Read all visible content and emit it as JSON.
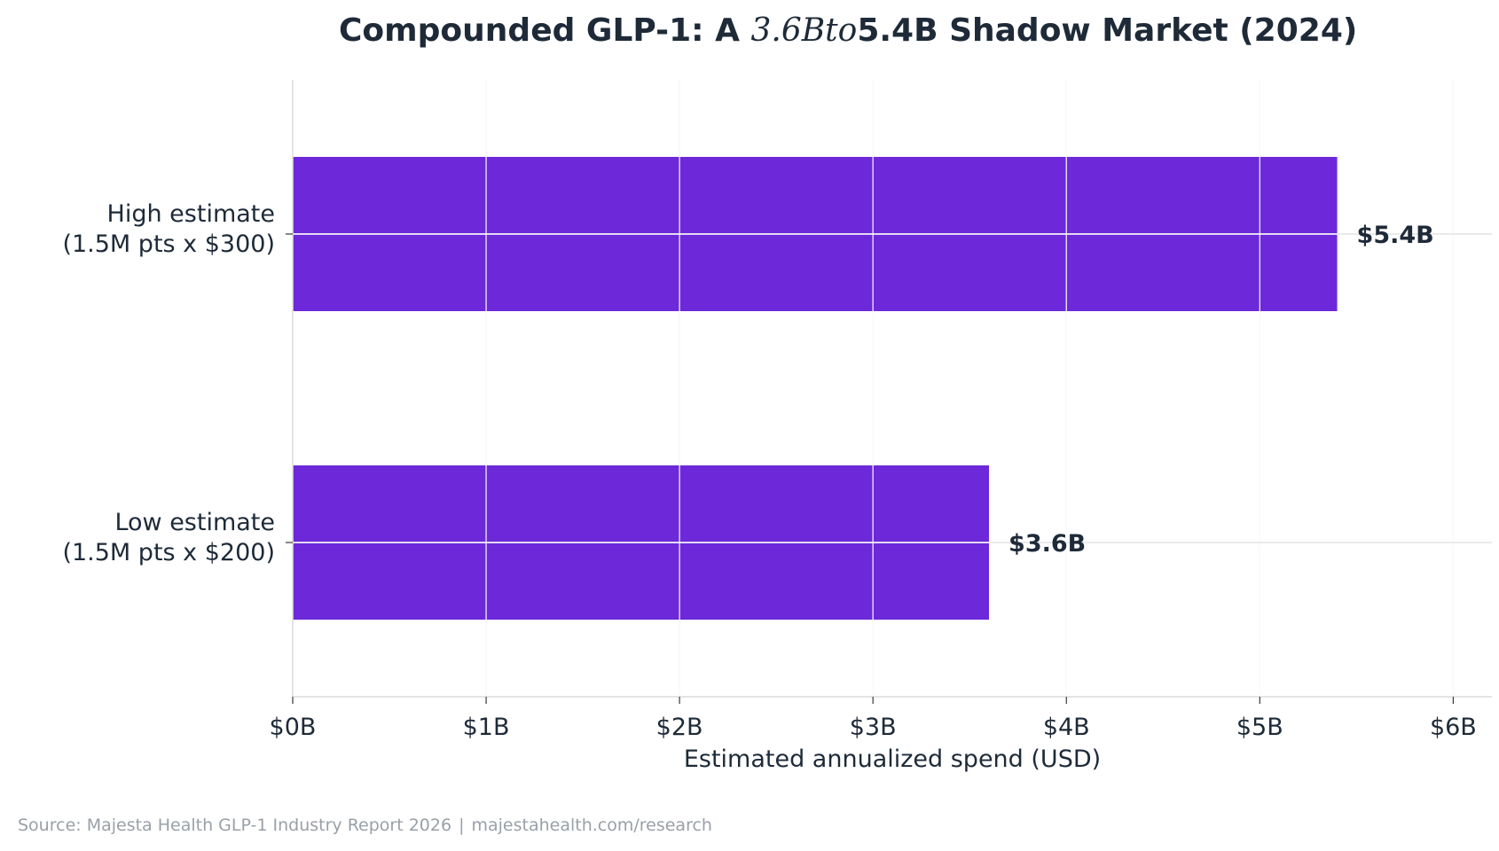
{
  "chart_data": {
    "type": "bar",
    "orientation": "horizontal",
    "title_parts": [
      "Compounded GLP-1: A ",
      "3.6Bto",
      "5.4B Shadow Market (2024)"
    ],
    "categories": [
      [
        "High estimate",
        "(1.5M pts x $300)"
      ],
      [
        "Low estimate",
        "(1.5M pts x $200)"
      ]
    ],
    "values": [
      5.4,
      3.6
    ],
    "value_labels": [
      "$5.4B",
      "$3.6B"
    ],
    "xlabel": "Estimated annualized spend (USD)",
    "xlim": [
      0,
      6.2
    ],
    "xticks": [
      0,
      1,
      2,
      3,
      4,
      5,
      6
    ],
    "xtick_labels": [
      "$0B",
      "$1B",
      "$2B",
      "$3B",
      "$4B",
      "$5B",
      "$6B"
    ],
    "grid": true,
    "bar_color": "#6c28d9",
    "text_color": "#1e2a38"
  },
  "footer": {
    "source": "Source: Majesta Health GLP-1 Industry Report 2026",
    "separator": "|",
    "url": "majestahealth.com/research"
  }
}
